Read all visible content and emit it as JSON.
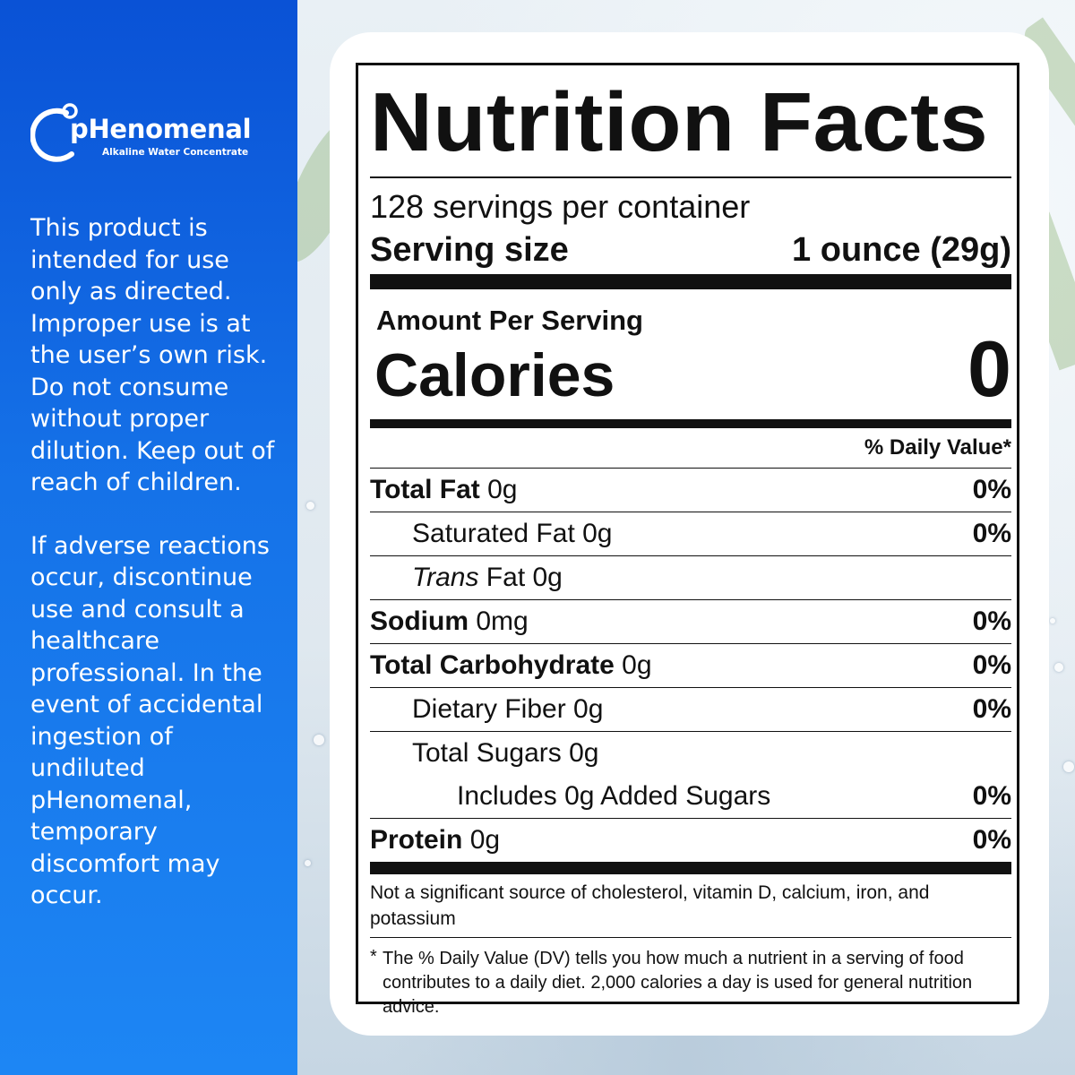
{
  "brand": {
    "name": "pHenomenal",
    "tagline": "Alkaline Water Concentrate"
  },
  "disclaimer": {
    "paragraph1": "This product is intended for use only as directed. Improper use is at the user’s own risk. Do not consume without proper dilution. Keep out of reach of children.",
    "paragraph2": "If adverse reactions occur, discontinue use and consult a healthcare professional. In the event of accidental ingestion of undiluted pHenomenal, temporary discomfort may occur."
  },
  "nutrition": {
    "title": "Nutrition Facts",
    "servings_per_container": "128 servings per container",
    "serving_size_label": "Serving size",
    "serving_size_value": "1 ounce (29g)",
    "amount_per_serving": "Amount Per Serving",
    "calories_label": "Calories",
    "calories_value": "0",
    "daily_value_header": "% Daily Value*",
    "rows": [
      {
        "bold": "Total Fat",
        "rest": " 0g",
        "italic": "",
        "percent": "0%"
      },
      {
        "bold": "",
        "rest": "Saturated Fat 0g",
        "italic": "",
        "percent": "0%"
      },
      {
        "bold": "",
        "rest": " Fat 0g",
        "italic": "Trans",
        "percent": ""
      },
      {
        "bold": "Sodium",
        "rest": " 0mg",
        "italic": "",
        "percent": "0%"
      },
      {
        "bold": "Total Carbohydrate",
        "rest": " 0g",
        "italic": "",
        "percent": "0%"
      },
      {
        "bold": "",
        "rest": "Dietary Fiber 0g",
        "italic": "",
        "percent": "0%"
      },
      {
        "bold": "",
        "rest": "Total Sugars 0g",
        "italic": "",
        "percent": ""
      },
      {
        "bold": "",
        "rest": "Includes 0g Added Sugars",
        "italic": "",
        "percent": "0%"
      },
      {
        "bold": "Protein",
        "rest": " 0g",
        "italic": "",
        "percent": "0%"
      }
    ],
    "not_significant": "Not a significant source of cholesterol, vitamin D, calcium, iron, and potassium",
    "footnote_star": "*",
    "footnote": "The % Daily Value (DV) tells you how much a nutrient in a serving of food contributes to a daily diet. 2,000 calories a day is used for general nutrition advice."
  },
  "colors": {
    "panel_blue_top": "#0a52d6",
    "panel_blue_bottom": "#1d86f4",
    "label_ink": "#111111"
  }
}
